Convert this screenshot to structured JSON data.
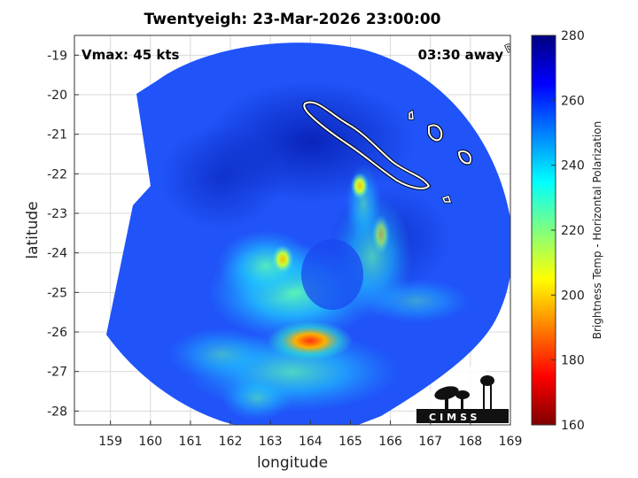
{
  "title": "Twentyeigh: 23-Mar-2026 23:00:00",
  "vmax_label": "Vmax: 45 kts",
  "away_label": "03:30 away",
  "xlabel": "longitude",
  "ylabel": "latitude",
  "colorbar_label": "Brightness Temp - Horizontal Polarization",
  "logo_text": "CIMSS",
  "colors": {
    "frame": "#000000",
    "grid": "#d9d9d9",
    "coastline": "#ffffff"
  },
  "chart_data": {
    "type": "heatmap",
    "xlim": [
      158.1,
      169.0
    ],
    "ylim": [
      -28.35,
      -18.5
    ],
    "x_ticks": [
      "159",
      "160",
      "161",
      "162",
      "163",
      "164",
      "165",
      "166",
      "167",
      "168",
      "169"
    ],
    "y_ticks": [
      "-19",
      "-20",
      "-21",
      "-22",
      "-23",
      "-24",
      "-25",
      "-26",
      "-27",
      "-28"
    ],
    "colorbar": {
      "min": 160,
      "max": 280,
      "ticks": [
        "280",
        "260",
        "240",
        "220",
        "200",
        "180",
        "160"
      ],
      "colormap": "jet"
    },
    "grid": true,
    "swath_background_value": 262,
    "features": [
      {
        "name": "warm core",
        "lon": 163.9,
        "lat": -26.25,
        "value": 195
      },
      {
        "name": "warm patch",
        "lon": 163.4,
        "lat": -24.2,
        "value": 208
      },
      {
        "name": "warm patch",
        "lon": 165.2,
        "lat": -22.3,
        "value": 215
      },
      {
        "name": "rainband",
        "lon": 165.6,
        "lat": -24.0,
        "value": 232
      },
      {
        "name": "rainband",
        "lon": 162.5,
        "lat": -25.2,
        "value": 235
      },
      {
        "name": "inner region",
        "lon": 164.3,
        "lat": -24.8,
        "value": 258
      }
    ]
  }
}
